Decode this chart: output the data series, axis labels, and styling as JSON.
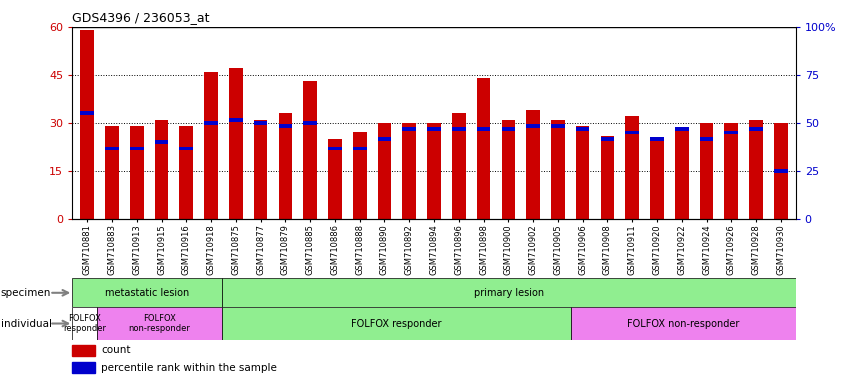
{
  "title": "GDS4396 / 236053_at",
  "samples": [
    "GSM710881",
    "GSM710883",
    "GSM710913",
    "GSM710915",
    "GSM710916",
    "GSM710918",
    "GSM710875",
    "GSM710877",
    "GSM710879",
    "GSM710885",
    "GSM710886",
    "GSM710888",
    "GSM710890",
    "GSM710892",
    "GSM710894",
    "GSM710896",
    "GSM710898",
    "GSM710900",
    "GSM710902",
    "GSM710905",
    "GSM710906",
    "GSM710908",
    "GSM710911",
    "GSM710920",
    "GSM710922",
    "GSM710924",
    "GSM710926",
    "GSM710928",
    "GSM710930"
  ],
  "count_values": [
    59,
    29,
    29,
    31,
    29,
    46,
    47,
    31,
    33,
    43,
    25,
    27,
    30,
    30,
    30,
    33,
    44,
    31,
    34,
    31,
    29,
    26,
    32,
    25,
    28,
    30,
    30,
    31,
    30
  ],
  "percentile_values": [
    33,
    22,
    22,
    24,
    22,
    30,
    31,
    30,
    29,
    30,
    22,
    22,
    25,
    28,
    28,
    28,
    28,
    28,
    29,
    29,
    28,
    25,
    27,
    25,
    28,
    25,
    27,
    28,
    15
  ],
  "bar_color": "#cc0000",
  "percentile_color": "#0000cc",
  "ylim_left": [
    0,
    60
  ],
  "ylim_right": [
    0,
    100
  ],
  "yticks_left": [
    0,
    15,
    30,
    45,
    60
  ],
  "yticks_right": [
    0,
    25,
    50,
    75,
    100
  ],
  "ytick_labels_right": [
    "0",
    "25",
    "50",
    "75",
    "100%"
  ],
  "individual_groups": [
    {
      "label": "FOLFOX\nresponder",
      "start": 0,
      "end": 1,
      "color": "#ffffff",
      "fontsize": 6
    },
    {
      "label": "FOLFOX\nnon-responder",
      "start": 1,
      "end": 6,
      "color": "#ee82ee",
      "fontsize": 6
    },
    {
      "label": "FOLFOX responder",
      "start": 6,
      "end": 20,
      "color": "#90ee90",
      "fontsize": 7
    },
    {
      "label": "FOLFOX non-responder",
      "start": 20,
      "end": 29,
      "color": "#ee82ee",
      "fontsize": 7
    }
  ],
  "bar_width": 0.55,
  "blue_bar_height": 1.2
}
